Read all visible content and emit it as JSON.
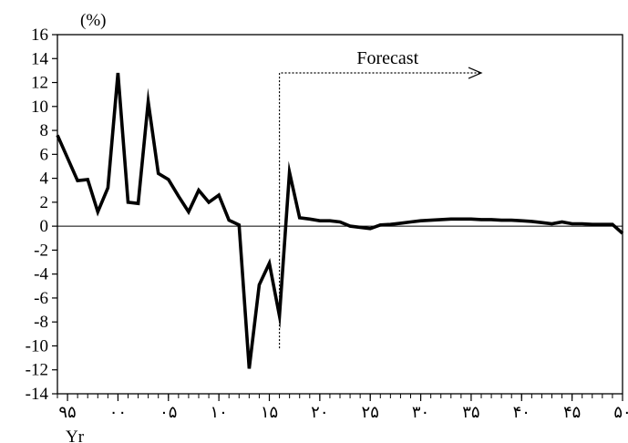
{
  "chart_data": {
    "type": "line",
    "unit_label": "(%)",
    "xlabel": "Yr",
    "ylabel": "",
    "ylim": [
      -14,
      16
    ],
    "yticks": [
      16,
      14,
      12,
      10,
      8,
      6,
      4,
      2,
      0,
      -2,
      -4,
      -6,
      -8,
      -10,
      -12,
      -14
    ],
    "xlim": [
      1994,
      2050
    ],
    "xticks": [
      {
        "x": 1995,
        "label": "۹۵"
      },
      {
        "x": 2000,
        "label": "۰۰"
      },
      {
        "x": 2005,
        "label": "۰۵"
      },
      {
        "x": 2010,
        "label": "۱۰"
      },
      {
        "x": 2015,
        "label": "۱۵"
      },
      {
        "x": 2020,
        "label": "۲۰"
      },
      {
        "x": 2025,
        "label": "۲۵"
      },
      {
        "x": 2030,
        "label": "۳۰"
      },
      {
        "x": 2035,
        "label": "۳۵"
      },
      {
        "x": 2040,
        "label": "۴۰"
      },
      {
        "x": 2045,
        "label": "۴۵"
      },
      {
        "x": 2050,
        "label": "۵۰"
      }
    ],
    "grid": false,
    "zero_line": true,
    "annotation": {
      "text": "Forecast",
      "start_x": 2016,
      "y_bottom": -10.2,
      "y_top": 12.8,
      "arrow_end_x": 2036
    },
    "series": [
      {
        "color": "#000000",
        "x": [
          1994,
          1995,
          1996,
          1997,
          1998,
          1999,
          2000,
          2001,
          2002,
          2003,
          2004,
          2005,
          2006,
          2007,
          2008,
          2009,
          2010,
          2011,
          2012,
          2013,
          2014,
          2015,
          2016,
          2017,
          2018,
          2019,
          2020,
          2021,
          2022,
          2023,
          2024,
          2025,
          2026,
          2027,
          2028,
          2029,
          2030,
          2031,
          2032,
          2033,
          2034,
          2035,
          2036,
          2037,
          2038,
          2039,
          2040,
          2041,
          2042,
          2043,
          2044,
          2045,
          2046,
          2047,
          2048,
          2049,
          2050
        ],
        "y": [
          7.6,
          5.7,
          3.8,
          3.9,
          1.2,
          3.2,
          12.8,
          2.0,
          1.9,
          10.4,
          4.4,
          3.9,
          2.5,
          1.2,
          3.0,
          2.0,
          2.6,
          0.5,
          0.1,
          -11.9,
          -4.9,
          -3.1,
          -7.5,
          4.5,
          0.7,
          0.6,
          0.45,
          0.45,
          0.35,
          0.0,
          -0.1,
          -0.2,
          0.1,
          0.15,
          0.25,
          0.35,
          0.45,
          0.5,
          0.55,
          0.6,
          0.6,
          0.6,
          0.55,
          0.55,
          0.5,
          0.5,
          0.45,
          0.4,
          0.3,
          0.2,
          0.35,
          0.2,
          0.2,
          0.15,
          0.15,
          0.15,
          -0.6
        ]
      }
    ]
  }
}
